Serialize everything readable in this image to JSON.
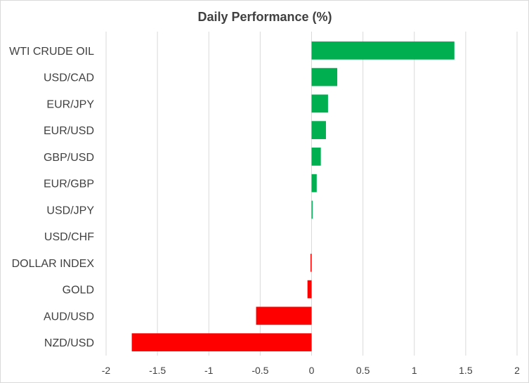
{
  "chart_data": {
    "type": "bar",
    "orientation": "horizontal",
    "title": "Daily Performance (%)",
    "xlabel": "",
    "ylabel": "",
    "xlim": [
      -2,
      2
    ],
    "x_ticks": [
      "-2",
      "-1.5",
      "-1",
      "-0.5",
      "0",
      "0.5",
      "1",
      "1.5",
      "2"
    ],
    "grid": true,
    "categories": [
      "WTI CRUDE OIL",
      "USD/CAD",
      "EUR/JPY",
      "EUR/USD",
      "GBP/USD",
      "EUR/GBP",
      "USD/JPY",
      "USD/CHF",
      "DOLLAR INDEX",
      "GOLD",
      "AUD/USD",
      "NZD/USD"
    ],
    "values": [
      1.39,
      0.25,
      0.16,
      0.14,
      0.09,
      0.05,
      0.01,
      0.0,
      -0.01,
      -0.04,
      -0.54,
      -1.75
    ],
    "colors": {
      "positive": "#00b050",
      "negative": "#ff0000"
    }
  }
}
